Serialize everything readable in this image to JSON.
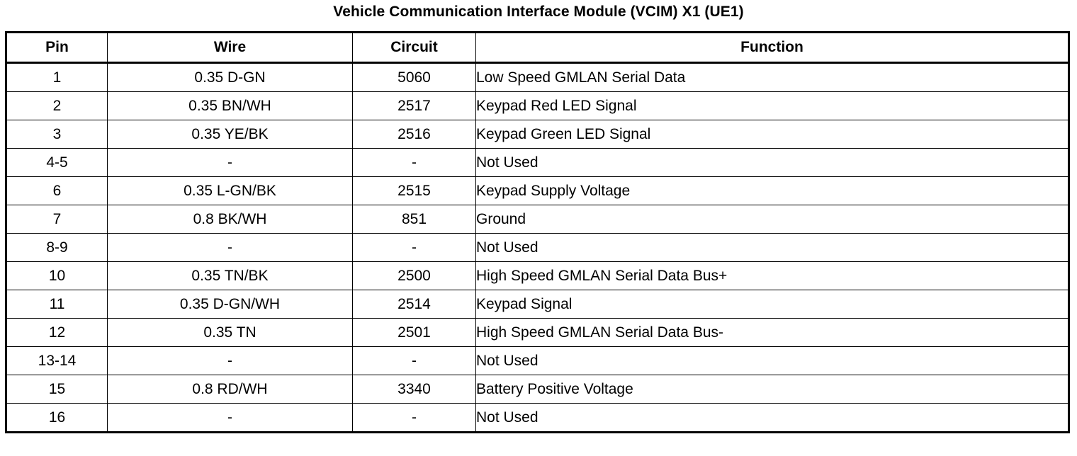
{
  "title": "Vehicle Communication Interface Module (VCIM) X1 (UE1)",
  "table": {
    "headers": {
      "pin": "Pin",
      "wire": "Wire",
      "circuit": "Circuit",
      "function": "Function"
    },
    "rows": [
      {
        "pin": "1",
        "wire": "0.35 D-GN",
        "circuit": "5060",
        "function": "Low Speed GMLAN Serial Data"
      },
      {
        "pin": "2",
        "wire": "0.35 BN/WH",
        "circuit": "2517",
        "function": "Keypad Red LED Signal"
      },
      {
        "pin": "3",
        "wire": "0.35 YE/BK",
        "circuit": "2516",
        "function": "Keypad Green LED Signal"
      },
      {
        "pin": "4-5",
        "wire": "-",
        "circuit": "-",
        "function": "Not Used"
      },
      {
        "pin": "6",
        "wire": "0.35 L-GN/BK",
        "circuit": "2515",
        "function": "Keypad Supply Voltage"
      },
      {
        "pin": "7",
        "wire": "0.8 BK/WH",
        "circuit": "851",
        "function": "Ground"
      },
      {
        "pin": "8-9",
        "wire": "-",
        "circuit": "-",
        "function": "Not Used"
      },
      {
        "pin": "10",
        "wire": "0.35 TN/BK",
        "circuit": "2500",
        "function": "High Speed GMLAN Serial Data Bus+"
      },
      {
        "pin": "11",
        "wire": "0.35 D-GN/WH",
        "circuit": "2514",
        "function": "Keypad Signal"
      },
      {
        "pin": "12",
        "wire": "0.35 TN",
        "circuit": "2501",
        "function": "High Speed GMLAN Serial Data Bus-"
      },
      {
        "pin": "13-14",
        "wire": "-",
        "circuit": "-",
        "function": "Not Used"
      },
      {
        "pin": "15",
        "wire": "0.8 RD/WH",
        "circuit": "3340",
        "function": "Battery Positive Voltage"
      },
      {
        "pin": "16",
        "wire": "-",
        "circuit": "-",
        "function": "Not Used"
      }
    ]
  }
}
